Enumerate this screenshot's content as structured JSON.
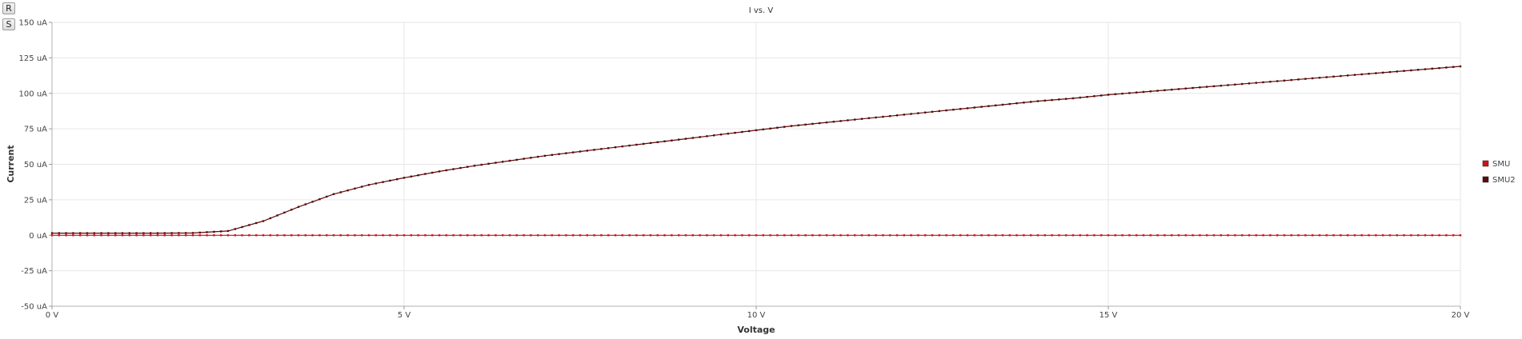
{
  "toolbar": {
    "reset_label": "R",
    "save_label": "S"
  },
  "chart_data": {
    "type": "line",
    "title": "I vs. V",
    "xlabel": "Voltage",
    "ylabel": "Current",
    "xlim": [
      0,
      20
    ],
    "ylim": [
      -50,
      150
    ],
    "x_ticks": [
      0,
      5,
      10,
      15,
      20
    ],
    "x_tick_labels": [
      "0 V",
      "5 V",
      "10 V",
      "15 V",
      "20 V"
    ],
    "y_ticks": [
      150,
      125,
      100,
      75,
      50,
      25,
      0,
      -25,
      -50
    ],
    "y_tick_labels": [
      "150 uA",
      "125 uA",
      "100 uA",
      "75 uA",
      "50 uA",
      "25 uA",
      "0 uA",
      "-25 uA",
      "-50 uA"
    ],
    "grid": true,
    "legend_position": "right",
    "series": [
      {
        "name": "SMU",
        "color": "#d0101a",
        "x": [
          0,
          0.5,
          1,
          1.5,
          2,
          2.5,
          3,
          3.5,
          4,
          4.5,
          5,
          5.5,
          6,
          6.5,
          7,
          7.5,
          8,
          8.5,
          9,
          9.5,
          10,
          10.5,
          11,
          11.5,
          12,
          12.5,
          13,
          13.5,
          14,
          14.5,
          15,
          15.5,
          16,
          16.5,
          17,
          17.5,
          18,
          18.5,
          19,
          19.5,
          20
        ],
        "y": [
          0,
          0,
          0,
          0,
          0,
          0,
          0,
          0,
          0,
          0,
          0,
          0,
          0,
          0,
          0,
          0,
          0,
          0,
          0,
          0,
          0,
          0,
          0,
          0,
          0,
          0,
          0,
          0,
          0,
          0,
          0,
          0,
          0,
          0,
          0,
          0,
          0,
          0,
          0,
          0,
          0
        ]
      },
      {
        "name": "SMU2",
        "color": "#5a0a0a",
        "x": [
          0,
          0.5,
          1,
          1.5,
          2,
          2.5,
          3,
          3.5,
          4,
          4.5,
          5,
          5.5,
          6,
          6.5,
          7,
          7.5,
          8,
          8.5,
          9,
          9.5,
          10,
          10.5,
          11,
          11.5,
          12,
          12.5,
          13,
          13.5,
          14,
          14.5,
          15,
          15.5,
          16,
          16.5,
          17,
          17.5,
          18,
          18.5,
          19,
          19.5,
          20
        ],
        "y": [
          1.5,
          1.5,
          1.5,
          1.5,
          1.6,
          3,
          10,
          20,
          29,
          35.5,
          40.5,
          45,
          49,
          52.5,
          56,
          59,
          62,
          65,
          68,
          71,
          74,
          77,
          79.5,
          82,
          84.5,
          87,
          89.5,
          92,
          94.5,
          96.5,
          99,
          101,
          103,
          105,
          107,
          109,
          111,
          113,
          115,
          117,
          119
        ]
      }
    ]
  }
}
